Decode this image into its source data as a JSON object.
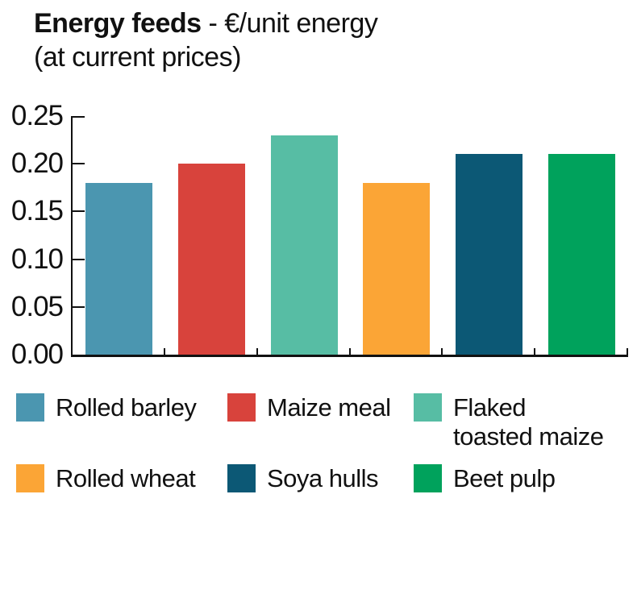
{
  "title": {
    "bold": "Energy feeds",
    "rest": " - €/unit energy",
    "line2": "(at current prices)"
  },
  "chart_data": {
    "type": "bar",
    "title": "Energy feeds - €/unit energy (at current prices)",
    "categories": [
      "Rolled barley",
      "Maize meal",
      "Flaked toasted maize",
      "Rolled wheat",
      "Soya hulls",
      "Beet pulp"
    ],
    "values": [
      0.18,
      0.2,
      0.23,
      0.18,
      0.21,
      0.21
    ],
    "colors": [
      "#4b96b0",
      "#d8433c",
      "#57bda4",
      "#fba536",
      "#0c5875",
      "#00a25c"
    ],
    "legend_labels": [
      "Rolled barley",
      "Maize meal",
      "Flaked\ntoasted maize",
      "Rolled wheat",
      "Soya hulls",
      "Beet pulp"
    ],
    "ylabel": "€/unit energy",
    "ylim": [
      0,
      0.25
    ],
    "yticks": [
      "0.00",
      "0.05",
      "0.10",
      "0.15",
      "0.20",
      "0.25"
    ],
    "grid": false,
    "legend_position": "bottom",
    "axis_color": "#111111",
    "background": "#ffffff"
  }
}
